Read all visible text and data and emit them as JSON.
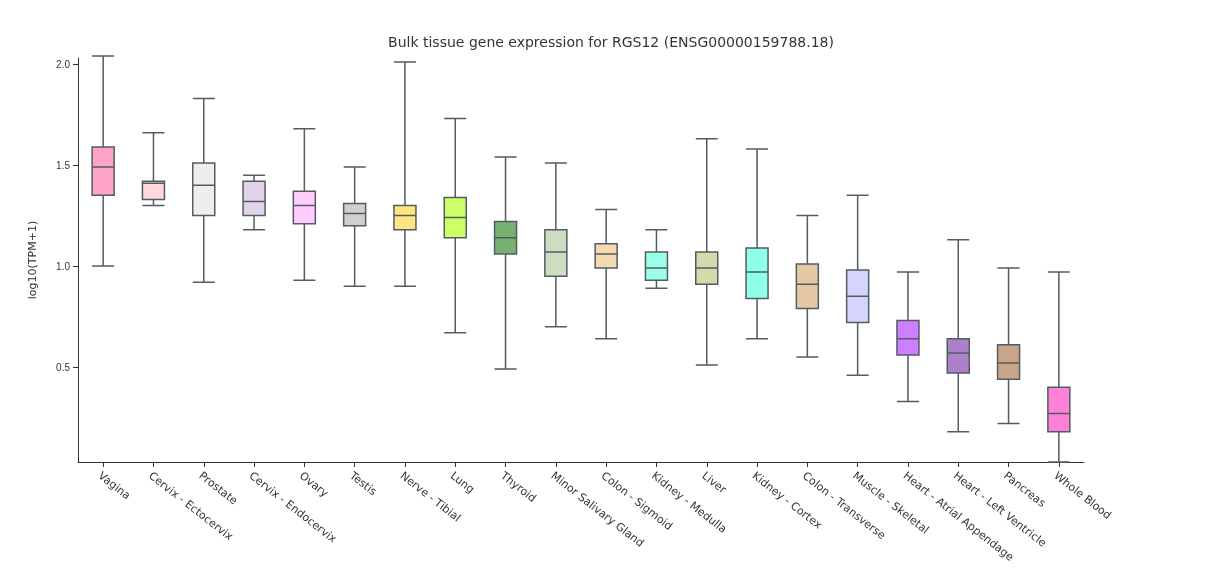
{
  "chart_data": {
    "type": "box",
    "title": "Bulk tissue gene expression for RGS12 (ENSG00000159788.18)",
    "ylabel": "log10(TPM+1)",
    "categories": [
      "Vagina",
      "Cervix - Ectocervix",
      "Prostate",
      "Cervix - Endocervix",
      "Ovary",
      "Testis",
      "Nerve - Tibial",
      "Lung",
      "Thyroid",
      "Minor Salivary Gland",
      "Colon - Sigmoid",
      "Kidney - Medulla",
      "Liver",
      "Kidney - Cortex",
      "Colon - Transverse",
      "Muscle - Skeletal",
      "Heart - Atrial Appendage",
      "Heart - Left Ventricle",
      "Pancreas",
      "Whole Blood"
    ],
    "boxes": [
      {
        "low": 1.0,
        "q1": 1.35,
        "median": 1.49,
        "q3": 1.59,
        "high": 2.04
      },
      {
        "low": 1.3,
        "q1": 1.33,
        "median": 1.41,
        "q3": 1.42,
        "high": 1.66
      },
      {
        "low": 0.92,
        "q1": 1.25,
        "median": 1.4,
        "q3": 1.51,
        "high": 1.83
      },
      {
        "low": 1.18,
        "q1": 1.25,
        "median": 1.32,
        "q3": 1.42,
        "high": 1.45
      },
      {
        "low": 0.93,
        "q1": 1.21,
        "median": 1.3,
        "q3": 1.37,
        "high": 1.68
      },
      {
        "low": 0.9,
        "q1": 1.2,
        "median": 1.26,
        "q3": 1.31,
        "high": 1.49
      },
      {
        "low": 0.9,
        "q1": 1.18,
        "median": 1.25,
        "q3": 1.3,
        "high": 2.01
      },
      {
        "low": 0.67,
        "q1": 1.14,
        "median": 1.24,
        "q3": 1.34,
        "high": 1.73
      },
      {
        "low": 0.49,
        "q1": 1.06,
        "median": 1.14,
        "q3": 1.22,
        "high": 1.54
      },
      {
        "low": 0.7,
        "q1": 0.95,
        "median": 1.07,
        "q3": 1.18,
        "high": 1.51
      },
      {
        "low": 0.64,
        "q1": 0.99,
        "median": 1.06,
        "q3": 1.11,
        "high": 1.28
      },
      {
        "low": 0.89,
        "q1": 0.93,
        "median": 0.99,
        "q3": 1.07,
        "high": 1.18
      },
      {
        "low": 0.51,
        "q1": 0.91,
        "median": 0.99,
        "q3": 1.07,
        "high": 1.63
      },
      {
        "low": 0.64,
        "q1": 0.84,
        "median": 0.97,
        "q3": 1.09,
        "high": 1.58
      },
      {
        "low": 0.55,
        "q1": 0.79,
        "median": 0.91,
        "q3": 1.01,
        "high": 1.25
      },
      {
        "low": 0.46,
        "q1": 0.72,
        "median": 0.85,
        "q3": 0.98,
        "high": 1.35
      },
      {
        "low": 0.33,
        "q1": 0.56,
        "median": 0.64,
        "q3": 0.73,
        "high": 0.97
      },
      {
        "low": 0.18,
        "q1": 0.47,
        "median": 0.57,
        "q3": 0.64,
        "high": 1.13
      },
      {
        "low": 0.22,
        "q1": 0.44,
        "median": 0.52,
        "q3": 0.61,
        "high": 0.99
      },
      {
        "low": 0.03,
        "q1": 0.18,
        "median": 0.27,
        "q3": 0.4,
        "high": 0.97
      }
    ],
    "colors": [
      "#ffa3c8",
      "#ffd9dc",
      "#eeeeee",
      "#e2d3ea",
      "#ffccff",
      "#d0d0d0",
      "#ffe680",
      "#ccff66",
      "#77b06f",
      "#cedcc2",
      "#f5d9b0",
      "#99ffe6",
      "#d6d9ab",
      "#8fffe8",
      "#e5c9a4",
      "#d4d4ff",
      "#cc7fff",
      "#ad80cc",
      "#c9a487",
      "#ff80d9"
    ],
    "ylim": [
      0.03,
      2.03
    ],
    "yticks": [
      0.5,
      {
        "value": 1,
        "label": "1.0"
      },
      1.5,
      {
        "value": 2,
        "label": "2.0"
      }
    ],
    "grid": false
  }
}
